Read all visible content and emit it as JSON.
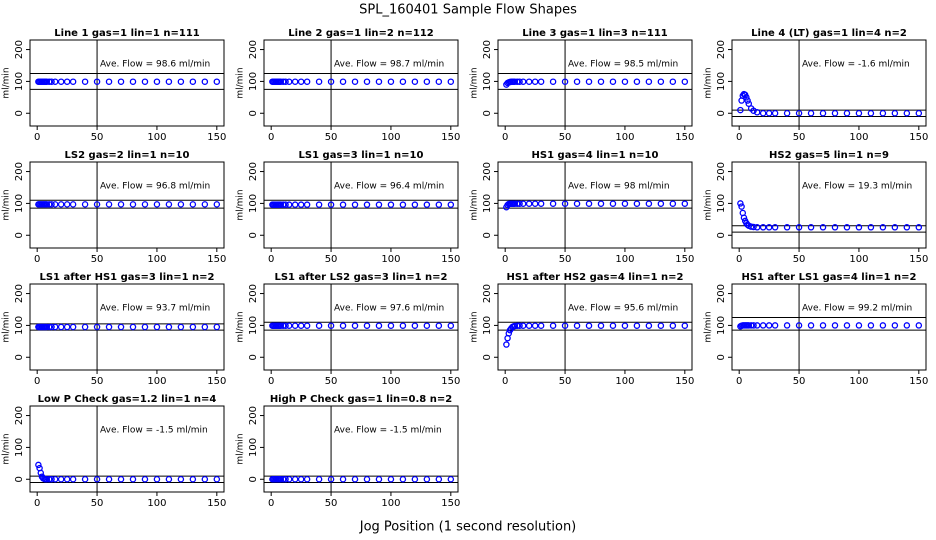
{
  "title": "SPL_160401  Sample Flow Shapes",
  "xlabel": "Jog Position (1 second resolution)",
  "chart_data": [
    {
      "type": "scatter",
      "title": "Line 1 gas=1 lin=1 n=111",
      "ylabel": "ml/min",
      "annotation": "Ave. Flow =  98.6  ml/min",
      "color": "#0000ff",
      "xlim": [
        -6,
        156
      ],
      "ylim": [
        -40,
        230
      ],
      "xticks": [
        0,
        50,
        100,
        150
      ],
      "yticks": [
        0,
        100,
        200
      ],
      "hlines": [
        75,
        125
      ],
      "vline": 50,
      "x": [
        1,
        2,
        3,
        4,
        5,
        6,
        7,
        8,
        10,
        12,
        15,
        20,
        25,
        30,
        40,
        50,
        60,
        70,
        80,
        90,
        100,
        110,
        120,
        130,
        140,
        150
      ],
      "values": [
        99,
        99,
        99,
        99,
        99,
        99,
        99,
        99,
        99,
        99,
        99,
        99,
        99,
        99,
        99,
        99,
        99,
        99,
        99,
        99,
        99,
        99,
        99,
        99,
        99,
        99
      ]
    },
    {
      "type": "scatter",
      "title": "Line 2 gas=1 lin=2 n=112",
      "ylabel": "ml/min",
      "annotation": "Ave. Flow =  98.7  ml/min",
      "color": "#0000ff",
      "xlim": [
        -6,
        156
      ],
      "ylim": [
        -40,
        230
      ],
      "xticks": [
        0,
        50,
        100,
        150
      ],
      "yticks": [
        0,
        100,
        200
      ],
      "hlines": [
        75,
        125
      ],
      "vline": 50,
      "x": [
        1,
        2,
        3,
        4,
        5,
        6,
        7,
        8,
        10,
        12,
        15,
        20,
        25,
        30,
        40,
        50,
        60,
        70,
        80,
        90,
        100,
        110,
        120,
        130,
        140,
        150
      ],
      "values": [
        99,
        99,
        99,
        99,
        99,
        99,
        99,
        99,
        99,
        99,
        99,
        99,
        99,
        99,
        99,
        99,
        99,
        99,
        99,
        99,
        99,
        99,
        99,
        99,
        99,
        99
      ]
    },
    {
      "type": "scatter",
      "title": "Line 3 gas=1 lin=3 n=111",
      "ylabel": "ml/min",
      "annotation": "Ave. Flow =  98.5  ml/min",
      "color": "#0000ff",
      "xlim": [
        -6,
        156
      ],
      "ylim": [
        -40,
        230
      ],
      "xticks": [
        0,
        50,
        100,
        150
      ],
      "yticks": [
        0,
        100,
        200
      ],
      "hlines": [
        75,
        125
      ],
      "vline": 50,
      "x": [
        1,
        2,
        3,
        4,
        5,
        6,
        7,
        8,
        10,
        12,
        15,
        20,
        25,
        30,
        40,
        50,
        60,
        70,
        80,
        90,
        100,
        110,
        120,
        130,
        140,
        150
      ],
      "values": [
        90,
        95,
        97,
        98,
        99,
        99,
        99,
        99,
        99,
        99,
        99,
        99,
        99,
        99,
        99,
        99,
        99,
        99,
        99,
        99,
        99,
        99,
        99,
        99,
        99,
        99
      ]
    },
    {
      "type": "scatter",
      "title": "Line 4 (LT) gas=1 lin=4 n=2",
      "ylabel": "ml/min",
      "annotation": "Ave. Flow =  -1.6  ml/min",
      "color": "#0000ff",
      "xlim": [
        -6,
        156
      ],
      "ylim": [
        -40,
        230
      ],
      "xticks": [
        0,
        50,
        100,
        150
      ],
      "yticks": [
        0,
        100,
        200
      ],
      "hlines": [
        -10,
        10
      ],
      "vline": 50,
      "x": [
        1,
        2,
        3,
        4,
        5,
        6,
        7,
        8,
        10,
        12,
        15,
        20,
        25,
        30,
        40,
        50,
        60,
        70,
        80,
        90,
        100,
        110,
        120,
        130,
        140,
        150
      ],
      "values": [
        10,
        40,
        55,
        60,
        58,
        50,
        40,
        30,
        15,
        8,
        3,
        0,
        0,
        0,
        0,
        0,
        0,
        0,
        0,
        0,
        0,
        0,
        0,
        0,
        0,
        0
      ]
    },
    {
      "type": "scatter",
      "title": "LS2 gas=2 lin=1 n=10",
      "ylabel": "ml/min",
      "annotation": "Ave. Flow =  96.8  ml/min",
      "color": "#0000ff",
      "xlim": [
        -6,
        156
      ],
      "ylim": [
        -40,
        230
      ],
      "xticks": [
        0,
        50,
        100,
        150
      ],
      "yticks": [
        0,
        100,
        200
      ],
      "hlines": [
        85,
        110
      ],
      "vline": 50,
      "x": [
        1,
        2,
        3,
        4,
        5,
        6,
        7,
        8,
        10,
        12,
        15,
        20,
        25,
        30,
        40,
        50,
        60,
        70,
        80,
        90,
        100,
        110,
        120,
        130,
        140,
        150
      ],
      "values": [
        97,
        97,
        97,
        97,
        97,
        97,
        97,
        97,
        97,
        97,
        97,
        97,
        97,
        97,
        97,
        97,
        97,
        97,
        97,
        97,
        97,
        97,
        97,
        97,
        97,
        97
      ]
    },
    {
      "type": "scatter",
      "title": "LS1 gas=3 lin=1 n=10",
      "ylabel": "ml/min",
      "annotation": "Ave. Flow =  96.4  ml/min",
      "color": "#0000ff",
      "xlim": [
        -6,
        156
      ],
      "ylim": [
        -40,
        230
      ],
      "xticks": [
        0,
        50,
        100,
        150
      ],
      "yticks": [
        0,
        100,
        200
      ],
      "hlines": [
        85,
        110
      ],
      "vline": 50,
      "x": [
        1,
        2,
        3,
        4,
        5,
        6,
        7,
        8,
        10,
        12,
        15,
        20,
        25,
        30,
        40,
        50,
        60,
        70,
        80,
        90,
        100,
        110,
        120,
        130,
        140,
        150
      ],
      "values": [
        96,
        96,
        96,
        96,
        96,
        96,
        96,
        96,
        96,
        96,
        96,
        96,
        96,
        96,
        96,
        96,
        96,
        96,
        96,
        96,
        96,
        96,
        96,
        96,
        96,
        96
      ]
    },
    {
      "type": "scatter",
      "title": "HS1 gas=4 lin=1 n=10",
      "ylabel": "ml/min",
      "annotation": "Ave. Flow =  98  ml/min",
      "color": "#0000ff",
      "xlim": [
        -6,
        156
      ],
      "ylim": [
        -40,
        230
      ],
      "xticks": [
        0,
        50,
        100,
        150
      ],
      "yticks": [
        0,
        100,
        200
      ],
      "hlines": [
        85,
        110
      ],
      "vline": 50,
      "x": [
        1,
        2,
        3,
        4,
        5,
        6,
        7,
        8,
        10,
        12,
        15,
        20,
        25,
        30,
        40,
        50,
        60,
        70,
        80,
        90,
        100,
        110,
        120,
        130,
        140,
        150
      ],
      "values": [
        88,
        95,
        98,
        99,
        99,
        99,
        99,
        99,
        99,
        99,
        99,
        99,
        99,
        99,
        99,
        99,
        99,
        99,
        99,
        99,
        99,
        99,
        99,
        99,
        99,
        99
      ]
    },
    {
      "type": "scatter",
      "title": "HS2 gas=5 lin=1 n=9",
      "ylabel": "ml/min",
      "annotation": "Ave. Flow =  19.3  ml/min",
      "color": "#0000ff",
      "xlim": [
        -6,
        156
      ],
      "ylim": [
        -40,
        230
      ],
      "xticks": [
        0,
        50,
        100,
        150
      ],
      "yticks": [
        0,
        100,
        200
      ],
      "hlines": [
        10,
        30
      ],
      "vline": 50,
      "x": [
        1,
        2,
        3,
        4,
        5,
        6,
        7,
        8,
        10,
        12,
        15,
        20,
        25,
        30,
        40,
        50,
        60,
        70,
        80,
        90,
        100,
        110,
        120,
        130,
        140,
        150
      ],
      "values": [
        100,
        90,
        70,
        55,
        45,
        38,
        33,
        30,
        27,
        26,
        25,
        25,
        25,
        25,
        25,
        25,
        25,
        25,
        25,
        25,
        25,
        25,
        25,
        25,
        25,
        25
      ]
    },
    {
      "type": "scatter",
      "title": "LS1 after HS1 gas=3 lin=1 n=2",
      "ylabel": "ml/min",
      "annotation": "Ave. Flow =  93.7  ml/min",
      "color": "#0000ff",
      "xlim": [
        -6,
        156
      ],
      "ylim": [
        -40,
        230
      ],
      "xticks": [
        0,
        50,
        100,
        150
      ],
      "yticks": [
        0,
        100,
        200
      ],
      "hlines": [
        85,
        105
      ],
      "vline": 50,
      "x": [
        1,
        2,
        3,
        4,
        5,
        6,
        7,
        8,
        10,
        12,
        15,
        20,
        25,
        30,
        40,
        50,
        60,
        70,
        80,
        90,
        100,
        110,
        120,
        130,
        140,
        150
      ],
      "values": [
        95,
        95,
        95,
        95,
        95,
        95,
        95,
        95,
        95,
        95,
        95,
        95,
        95,
        95,
        95,
        95,
        95,
        95,
        95,
        95,
        95,
        95,
        95,
        95,
        95,
        95
      ]
    },
    {
      "type": "scatter",
      "title": "LS1 after LS2 gas=3 lin=1 n=2",
      "ylabel": "ml/min",
      "annotation": "Ave. Flow =  97.6  ml/min",
      "color": "#0000ff",
      "xlim": [
        -6,
        156
      ],
      "ylim": [
        -40,
        230
      ],
      "xticks": [
        0,
        50,
        100,
        150
      ],
      "yticks": [
        0,
        100,
        200
      ],
      "hlines": [
        85,
        110
      ],
      "vline": 50,
      "x": [
        1,
        2,
        3,
        4,
        5,
        6,
        7,
        8,
        10,
        12,
        15,
        20,
        25,
        30,
        40,
        50,
        60,
        70,
        80,
        90,
        100,
        110,
        120,
        130,
        140,
        150
      ],
      "values": [
        99,
        99,
        99,
        99,
        99,
        99,
        99,
        99,
        99,
        99,
        99,
        99,
        99,
        99,
        99,
        99,
        99,
        99,
        99,
        99,
        99,
        99,
        99,
        99,
        99,
        99
      ]
    },
    {
      "type": "scatter",
      "title": "HS1 after HS2 gas=4 lin=1 n=2",
      "ylabel": "ml/min",
      "annotation": "Ave. Flow =  95.6  ml/min",
      "color": "#0000ff",
      "xlim": [
        -6,
        156
      ],
      "ylim": [
        -40,
        230
      ],
      "xticks": [
        0,
        50,
        100,
        150
      ],
      "yticks": [
        0,
        100,
        200
      ],
      "hlines": [
        85,
        110
      ],
      "vline": 50,
      "x": [
        1,
        2,
        3,
        4,
        5,
        6,
        7,
        8,
        10,
        12,
        15,
        20,
        25,
        30,
        40,
        50,
        60,
        70,
        80,
        90,
        100,
        110,
        120,
        130,
        140,
        150
      ],
      "values": [
        40,
        60,
        75,
        85,
        90,
        95,
        97,
        98,
        99,
        99,
        99,
        99,
        99,
        99,
        99,
        99,
        99,
        99,
        99,
        99,
        99,
        99,
        99,
        99,
        99,
        99
      ]
    },
    {
      "type": "scatter",
      "title": "HS1 after LS1 gas=4 lin=1 n=2",
      "ylabel": "ml/min",
      "annotation": "Ave. Flow =  99.2  ml/min",
      "color": "#0000ff",
      "xlim": [
        -6,
        156
      ],
      "ylim": [
        -40,
        230
      ],
      "xticks": [
        0,
        50,
        100,
        150
      ],
      "yticks": [
        0,
        100,
        200
      ],
      "hlines": [
        85,
        125
      ],
      "vline": 50,
      "x": [
        1,
        2,
        3,
        4,
        5,
        6,
        7,
        8,
        10,
        12,
        15,
        20,
        25,
        30,
        40,
        50,
        60,
        70,
        80,
        90,
        100,
        110,
        120,
        130,
        140,
        150
      ],
      "values": [
        97,
        99,
        100,
        100,
        100,
        100,
        100,
        100,
        100,
        100,
        100,
        100,
        100,
        100,
        100,
        100,
        100,
        100,
        100,
        100,
        100,
        100,
        100,
        100,
        100,
        100
      ]
    },
    {
      "type": "scatter",
      "title": "Low P Check gas=1.2 lin=1 n=4",
      "ylabel": "ml/min",
      "annotation": "Ave. Flow =  -1.5  ml/min",
      "color": "#0000ff",
      "xlim": [
        -6,
        156
      ],
      "ylim": [
        -40,
        230
      ],
      "xticks": [
        0,
        50,
        100,
        150
      ],
      "yticks": [
        0,
        100,
        200
      ],
      "hlines": [
        -10,
        10
      ],
      "vline": 50,
      "x": [
        1,
        2,
        3,
        4,
        5,
        6,
        7,
        8,
        10,
        12,
        15,
        20,
        25,
        30,
        40,
        50,
        60,
        70,
        80,
        90,
        100,
        110,
        120,
        130,
        140,
        150
      ],
      "values": [
        45,
        35,
        20,
        8,
        3,
        1,
        0,
        0,
        0,
        0,
        0,
        0,
        0,
        0,
        0,
        0,
        0,
        0,
        0,
        0,
        0,
        0,
        0,
        0,
        0,
        0
      ]
    },
    {
      "type": "scatter",
      "title": "High P Check gas=1 lin=0.8 n=2",
      "ylabel": "ml/min",
      "annotation": "Ave. Flow =  -1.5  ml/min",
      "color": "#0000ff",
      "xlim": [
        -6,
        156
      ],
      "ylim": [
        -40,
        230
      ],
      "xticks": [
        0,
        50,
        100,
        150
      ],
      "yticks": [
        0,
        100,
        200
      ],
      "hlines": [
        -10,
        10
      ],
      "vline": 50,
      "x": [
        1,
        2,
        3,
        4,
        5,
        6,
        7,
        8,
        10,
        12,
        15,
        20,
        25,
        30,
        40,
        50,
        60,
        70,
        80,
        90,
        100,
        110,
        120,
        130,
        140,
        150
      ],
      "values": [
        0,
        0,
        0,
        0,
        0,
        0,
        0,
        0,
        0,
        0,
        0,
        0,
        0,
        0,
        0,
        0,
        0,
        0,
        0,
        0,
        0,
        0,
        0,
        0,
        0,
        0
      ]
    }
  ]
}
